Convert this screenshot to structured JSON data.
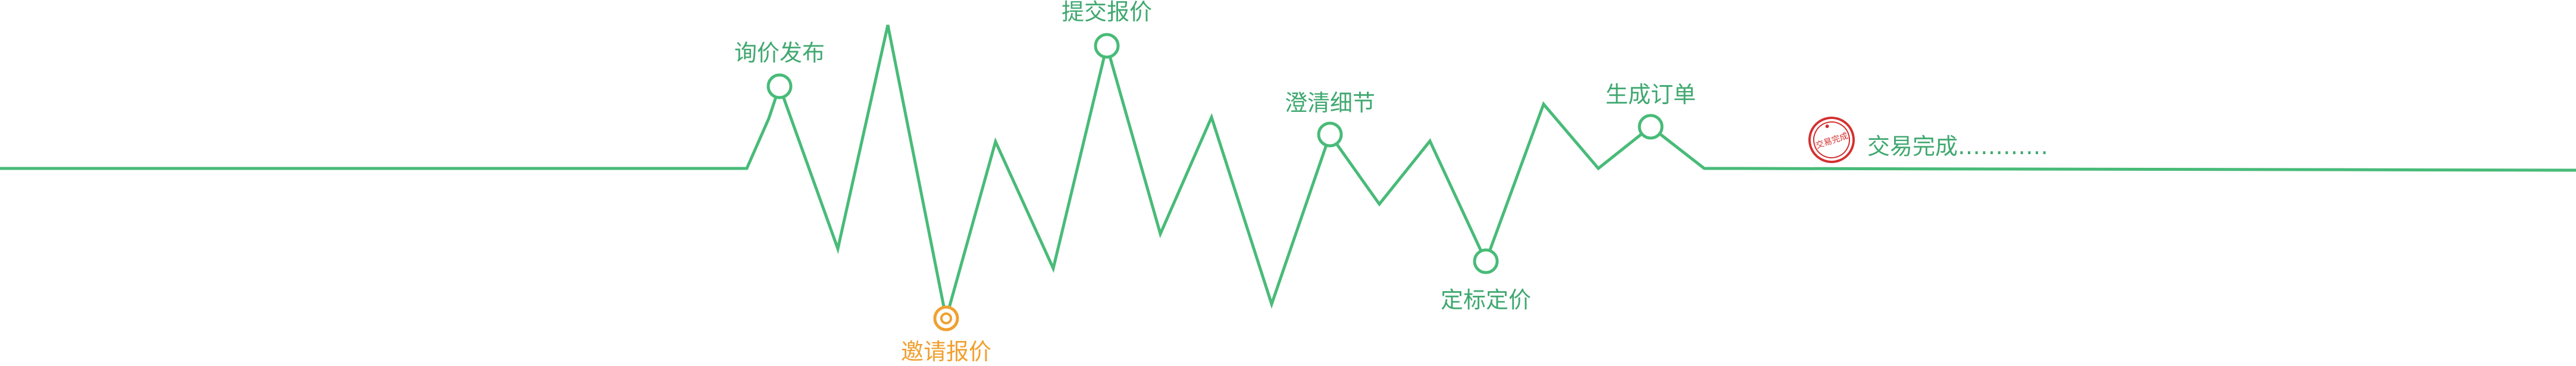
{
  "colors": {
    "background": "#ffffff",
    "line": "#48bb78",
    "label": "#40a870",
    "highlight": "#f0a030",
    "stamp": "#d43030"
  },
  "stages": [
    {
      "id": "inquiry-publish",
      "label": "询价发布",
      "state": "done"
    },
    {
      "id": "invite-quote",
      "label": "邀请报价",
      "state": "current"
    },
    {
      "id": "submit-quote",
      "label": "提交报价",
      "state": "done"
    },
    {
      "id": "clarify-details",
      "label": "澄清细节",
      "state": "done"
    },
    {
      "id": "bid-decision",
      "label": "定标定价",
      "state": "done"
    },
    {
      "id": "create-order",
      "label": "生成订单",
      "state": "done"
    }
  ],
  "completion": {
    "label": "交易完成…………",
    "stamp_icon": "trade-complete-stamp",
    "stamp_text": "交易完成"
  }
}
